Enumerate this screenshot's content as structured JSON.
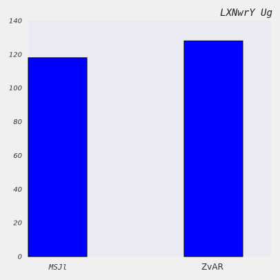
{
  "chart_data": {
    "type": "bar",
    "title": "LXNwrY Ug",
    "categories": [
      "MSJl",
      "ZvAR"
    ],
    "values": [
      118,
      128
    ],
    "ylim": [
      0,
      140
    ],
    "yticks": [
      0,
      20,
      40,
      60,
      80,
      100,
      120,
      140
    ],
    "xlabel": "",
    "ylabel": "",
    "grid": false,
    "legend": "none",
    "colors": {
      "bar": "#0000ff",
      "bar_edge": "#000000",
      "plot_background": "#eaeaf2",
      "page_background": "#f0f0f0"
    }
  }
}
